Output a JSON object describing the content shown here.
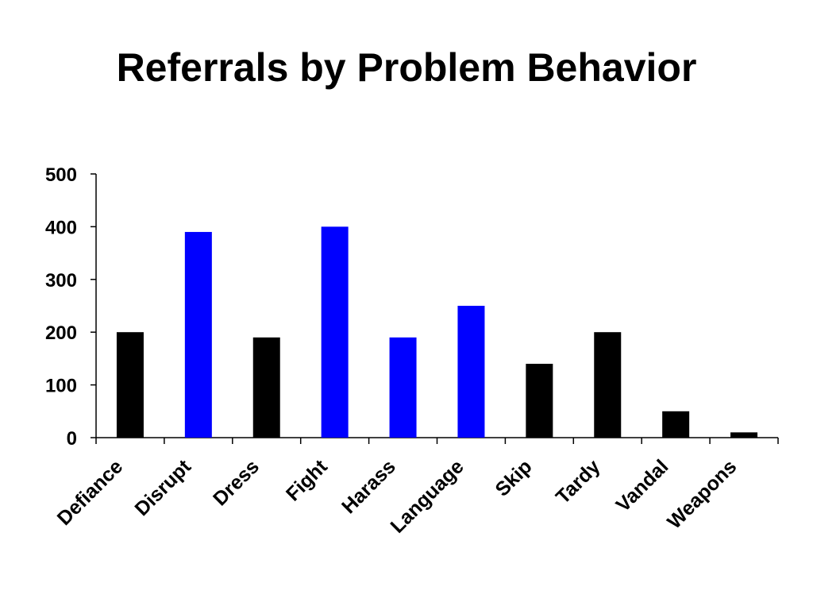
{
  "title": "Referrals by Problem Behavior",
  "colors": {
    "background": "#ffffff",
    "text": "#000000",
    "axis": "#000000",
    "bar_default": "#000000",
    "bar_highlight": "#0000ff"
  },
  "chart_data": {
    "type": "bar",
    "title": "Referrals by Problem Behavior",
    "xlabel": "",
    "ylabel": "",
    "ylim": [
      0,
      500
    ],
    "yticks": [
      0,
      100,
      200,
      300,
      400,
      500
    ],
    "grid": false,
    "legend": "none",
    "categories": [
      "Defiance",
      "Disrupt",
      "Dress",
      "Fight",
      "Harass",
      "Language",
      "Skip",
      "Tardy",
      "Vandal",
      "Weapons"
    ],
    "values": [
      200,
      390,
      190,
      400,
      190,
      250,
      140,
      200,
      50,
      10
    ],
    "highlighted": [
      false,
      true,
      false,
      true,
      true,
      true,
      false,
      false,
      false,
      false
    ]
  }
}
